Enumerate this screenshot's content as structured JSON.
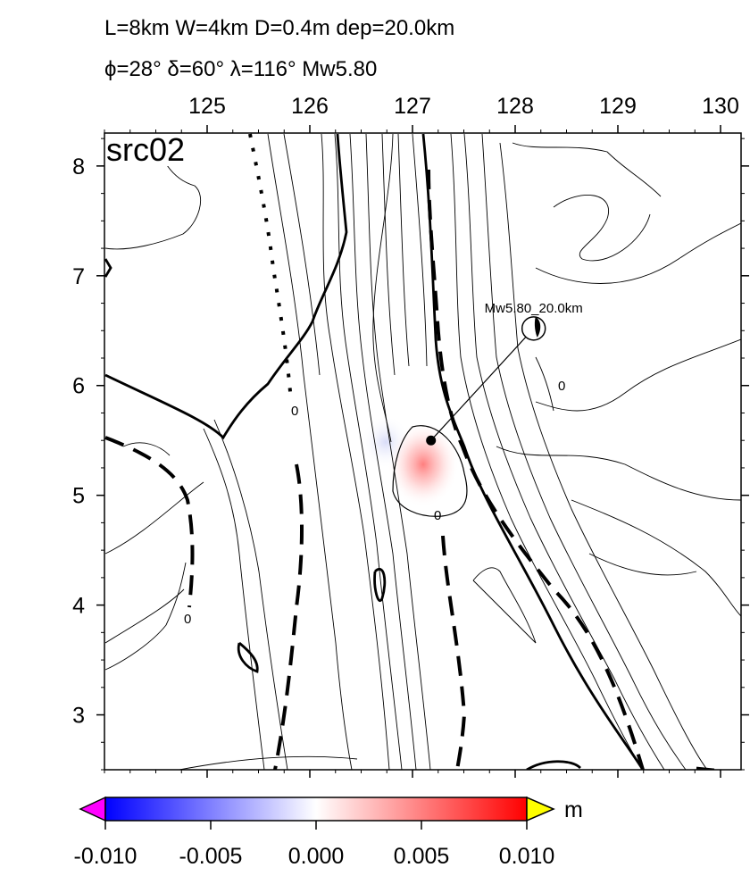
{
  "header": {
    "line1": "L=8km W=4km D=0.4m dep=20.0km",
    "line2": "ϕ=28° δ=60° λ=116° Mw5.80"
  },
  "map": {
    "panel_label": "src02",
    "x_ticks": [
      "125",
      "126",
      "127",
      "128",
      "129",
      "130"
    ],
    "y_ticks": [
      "8",
      "7",
      "6",
      "5",
      "4",
      "3"
    ],
    "x_range": [
      124.0,
      130.2
    ],
    "y_range": [
      2.5,
      8.3
    ],
    "contour_zero_label": "0",
    "event_label": "Mw5.80_20.0km",
    "source_point": [
      127.18,
      5.5
    ],
    "beachball_point": [
      128.18,
      6.52
    ]
  },
  "colorbar": {
    "unit": "m",
    "ticks": [
      "-0.010",
      "-0.005",
      "0.000",
      "0.005",
      "0.010"
    ],
    "range": [
      -0.01,
      0.01
    ],
    "colors": {
      "min": "#0000ff",
      "mid": "#ffffff",
      "max": "#ff0000",
      "under": "#ff00ff",
      "over": "#ffff00"
    }
  }
}
